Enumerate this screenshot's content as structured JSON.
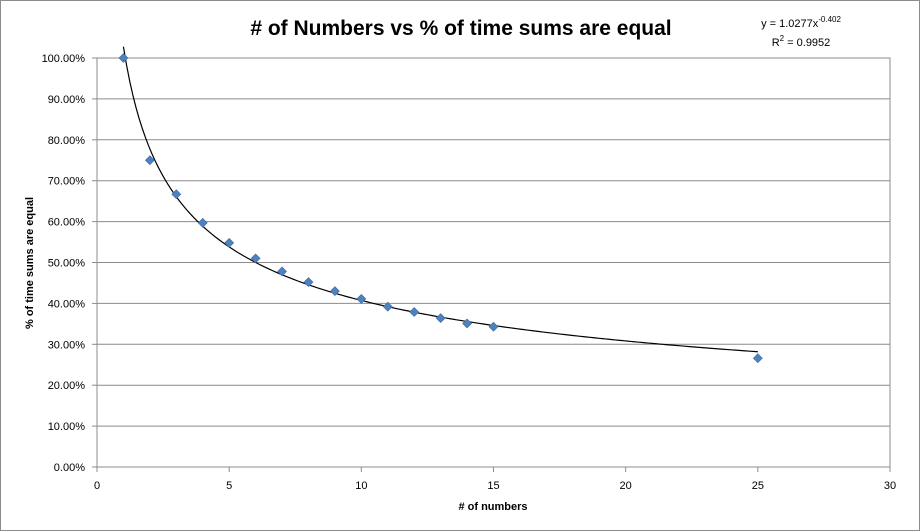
{
  "chart_data": {
    "type": "scatter",
    "title": "# of Numbers vs % of time sums are equal",
    "xlabel": "# of numbers",
    "ylabel": "% of time sums are equal",
    "xlim": [
      0,
      30
    ],
    "ylim": [
      0,
      1
    ],
    "x_ticks": [
      0,
      5,
      10,
      15,
      20,
      25,
      30
    ],
    "x_tick_labels": [
      "0",
      "5",
      "10",
      "15",
      "20",
      "25",
      "30"
    ],
    "y_ticks": [
      0,
      0.1,
      0.2,
      0.3,
      0.4,
      0.5,
      0.6,
      0.7,
      0.8,
      0.9,
      1.0
    ],
    "y_tick_labels": [
      "0.00%",
      "10.00%",
      "20.00%",
      "30.00%",
      "40.00%",
      "50.00%",
      "60.00%",
      "70.00%",
      "80.00%",
      "90.00%",
      "100.00%"
    ],
    "grid": "horizontal",
    "legend": "none",
    "series": [
      {
        "color": "#4f81bd",
        "marker": "diamond",
        "points": [
          {
            "x": 1,
            "y": 1.0
          },
          {
            "x": 2,
            "y": 0.75
          },
          {
            "x": 3,
            "y": 0.667
          },
          {
            "x": 4,
            "y": 0.597
          },
          {
            "x": 5,
            "y": 0.548
          },
          {
            "x": 6,
            "y": 0.51
          },
          {
            "x": 7,
            "y": 0.478
          },
          {
            "x": 8,
            "y": 0.452
          },
          {
            "x": 9,
            "y": 0.43
          },
          {
            "x": 10,
            "y": 0.411
          },
          {
            "x": 11,
            "y": 0.392
          },
          {
            "x": 12,
            "y": 0.379
          },
          {
            "x": 13,
            "y": 0.364
          },
          {
            "x": 14,
            "y": 0.351
          },
          {
            "x": 15,
            "y": 0.343
          },
          {
            "x": 25,
            "y": 0.266
          }
        ]
      }
    ],
    "trendline": {
      "type": "power",
      "coefficient": 1.0277,
      "exponent": -0.402,
      "x_range": [
        1,
        25
      ],
      "color": "#000000",
      "equation_prefix": "y = 1.0277x",
      "equation_exponent": "-0.402",
      "r_squared_prefix": "R",
      "r_squared_exponent": "2",
      "r_squared_suffix": " = 0.9952"
    }
  }
}
